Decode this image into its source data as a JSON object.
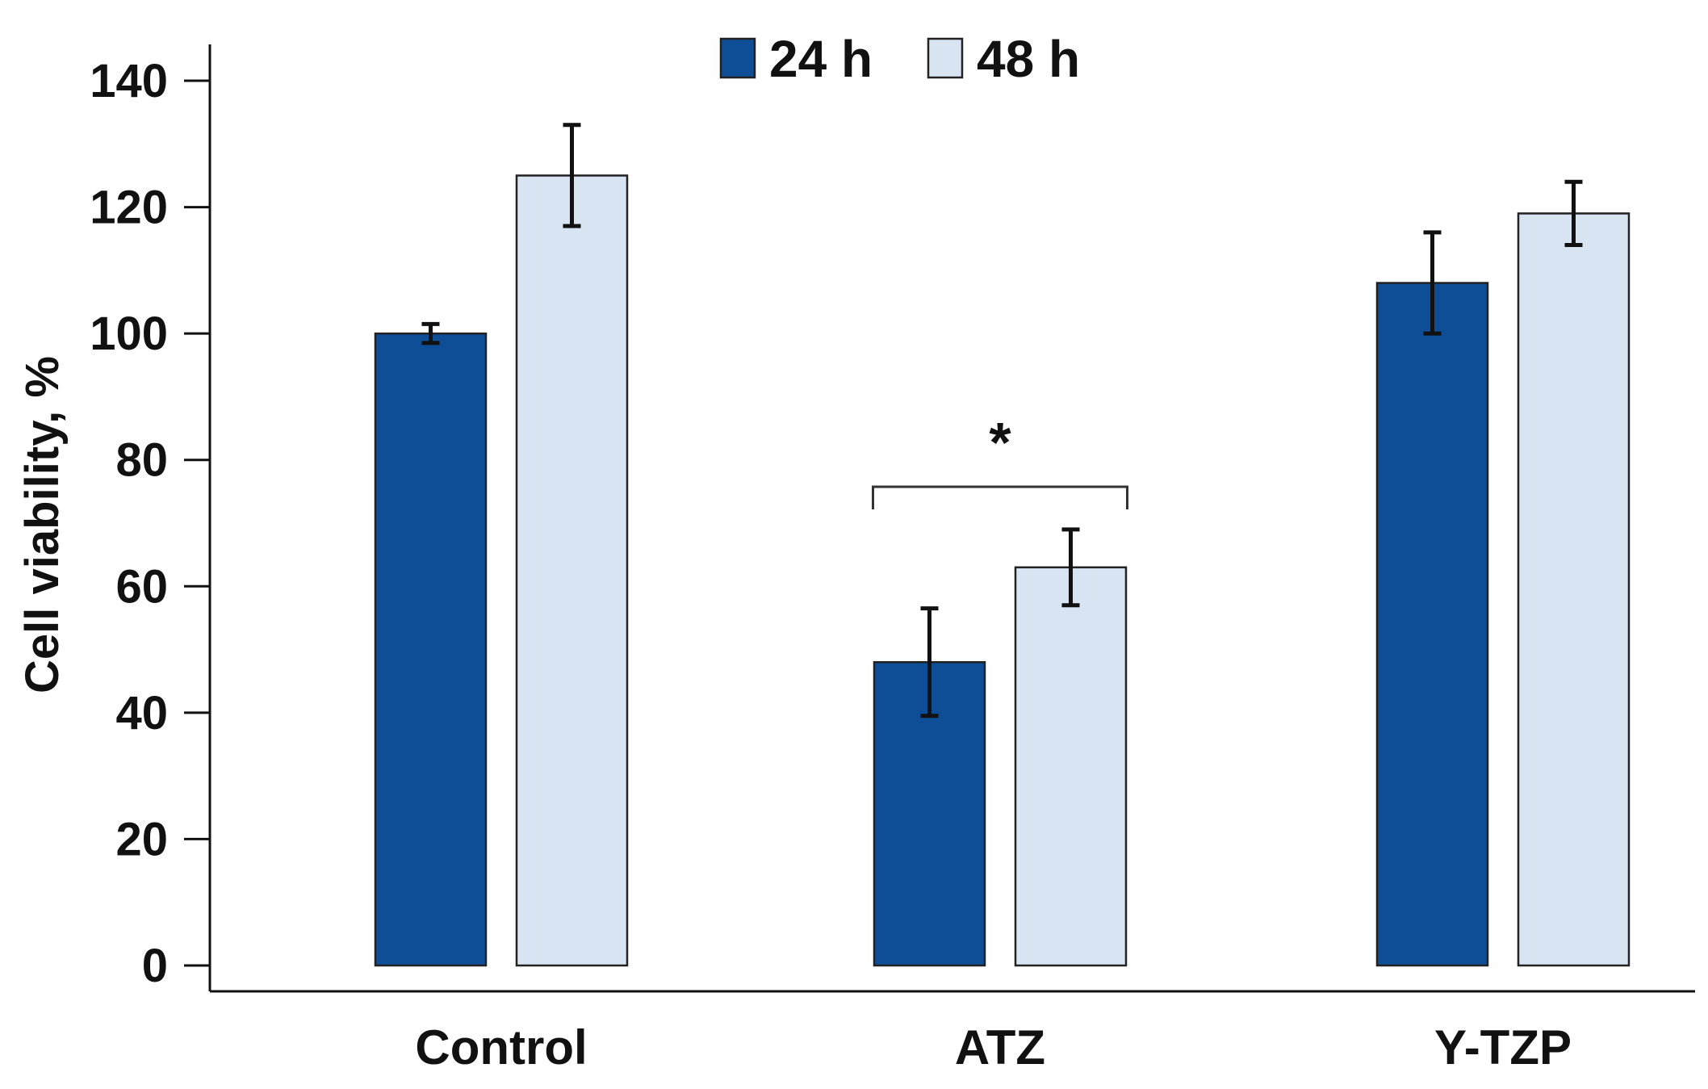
{
  "chart_data": {
    "type": "bar",
    "title": "",
    "xlabel": "",
    "ylabel": "Cell viability, %",
    "ylim": [
      0,
      140
    ],
    "yticks": [
      0,
      20,
      40,
      60,
      80,
      100,
      120,
      140
    ],
    "ytick_labels": [
      "0",
      "20",
      "40",
      "60",
      "80",
      "100",
      "120",
      "140"
    ],
    "categories": [
      "Control",
      "ATZ",
      "Y-TZP"
    ],
    "grid": false,
    "legend_position": "top-center",
    "series": [
      {
        "name": "24 h",
        "color": "#0d4e96",
        "values": [
          100,
          48,
          108
        ],
        "errors": [
          1.5,
          8.5,
          8
        ]
      },
      {
        "name": "48 h",
        "color": "#d9e4f3",
        "values": [
          125,
          63,
          119
        ],
        "errors": [
          8,
          6,
          5
        ]
      }
    ],
    "annotations": [
      {
        "type": "significance-bracket",
        "category": "ATZ",
        "label": "*"
      }
    ]
  }
}
